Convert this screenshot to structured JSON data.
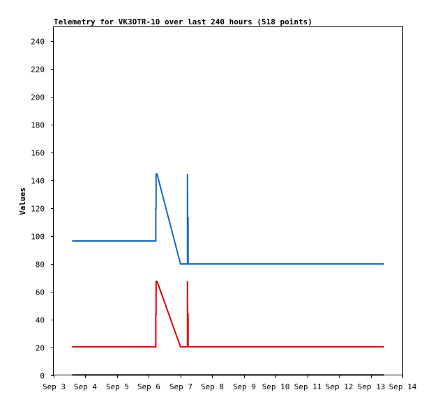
{
  "chart_data": {
    "type": "line",
    "title": "Telemetry for VK3OTR-10 over last 240 hours (518 points)",
    "xlabel": "",
    "ylabel": "Values",
    "x_unit": "day of September",
    "xlim": [
      3,
      14
    ],
    "ylim": [
      0,
      250
    ],
    "x_ticks": [
      3,
      4,
      5,
      6,
      7,
      8,
      9,
      10,
      11,
      12,
      13,
      14
    ],
    "x_tick_labels": [
      "Sep 3",
      "Sep 4",
      "Sep 5",
      "Sep 6",
      "Sep 7",
      "Sep 8",
      "Sep 9",
      "Sep 10",
      "Sep 11",
      "Sep 12",
      "Sep 13",
      "Sep 14"
    ],
    "y_ticks": [
      0,
      20,
      40,
      60,
      80,
      100,
      120,
      140,
      160,
      180,
      200,
      220,
      240
    ],
    "grid": false,
    "legend": "none",
    "series": [
      {
        "color": "#1565c0",
        "x": [
          3.58,
          6.22,
          6.22,
          6.23,
          6.23,
          6.26,
          7.0,
          7.22,
          7.22,
          7.23,
          7.23,
          7.24,
          7.24,
          13.42
        ],
        "y": [
          96.5,
          96.5,
          120,
          120,
          144.5,
          144.5,
          80,
          80,
          144.5,
          80,
          113,
          113,
          80,
          80
        ]
      },
      {
        "color": "#e00000",
        "x": [
          3.58,
          6.22,
          6.22,
          6.23,
          6.23,
          6.26,
          7.0,
          7.22,
          7.22,
          7.23,
          7.23,
          7.24,
          7.24,
          13.42
        ],
        "y": [
          20.5,
          20.5,
          44,
          44,
          67.5,
          67.5,
          20.5,
          20.5,
          67.5,
          20.5,
          44,
          44,
          20.5,
          20.5
        ]
      },
      {
        "color": "#000000",
        "x": [
          3.58,
          13.42
        ],
        "y": [
          0.3,
          0.3
        ]
      }
    ]
  }
}
